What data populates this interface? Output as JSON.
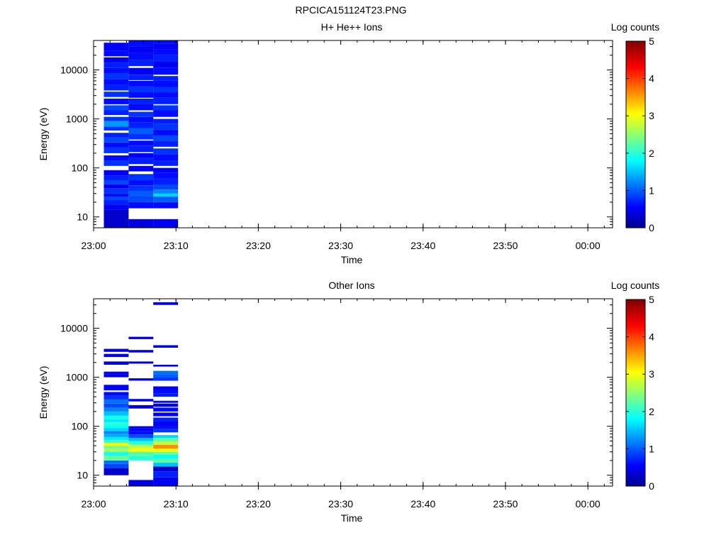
{
  "page_title": "RPCICA151124T23.PNG",
  "chart_data": [
    {
      "type": "heatmap",
      "title": "H+ He++ Ions",
      "xlabel": "Time",
      "ylabel": "Energy (eV)",
      "x_ticks": [
        "23:00",
        "23:10",
        "23:20",
        "23:30",
        "23:40",
        "23:50",
        "00:00"
      ],
      "x_range": [
        "23:00",
        "00:03"
      ],
      "y_scale": "log",
      "y_ticks": [
        10,
        100,
        1000,
        10000
      ],
      "y_range": [
        6,
        40000
      ],
      "colorbar": {
        "label": "Log counts",
        "min": 0,
        "max": 5,
        "ticks": [
          0,
          1,
          2,
          3,
          4,
          5
        ]
      },
      "columns": [
        {
          "t_start": "23:01:15",
          "t_end": "23:04:15",
          "bins": [
            [
              6,
              14,
              0.3
            ],
            [
              14,
              18,
              0.5
            ],
            [
              18,
              22,
              0.7
            ],
            [
              22,
              26,
              0.9
            ],
            [
              26,
              30,
              0.6
            ],
            [
              30,
              38,
              0.8
            ],
            [
              38,
              46,
              0.5
            ],
            [
              46,
              56,
              0.9
            ],
            [
              56,
              70,
              0.7
            ],
            [
              70,
              90,
              0.5
            ],
            [
              110,
              140,
              0.8
            ],
            [
              140,
              180,
              0.6
            ],
            [
              200,
              260,
              0.8
            ],
            [
              260,
              330,
              0.6
            ],
            [
              330,
              420,
              0.9
            ],
            [
              420,
              520,
              0.7
            ],
            [
              580,
              700,
              0.8
            ],
            [
              700,
              900,
              1.3
            ],
            [
              900,
              1100,
              0.8
            ],
            [
              1200,
              1500,
              0.7
            ],
            [
              1500,
              1900,
              0.9
            ],
            [
              2000,
              2600,
              0.6
            ],
            [
              2800,
              3600,
              0.8
            ],
            [
              3800,
              5000,
              0.7
            ],
            [
              5000,
              6500,
              0.6
            ],
            [
              6500,
              8500,
              0.8
            ],
            [
              8500,
              11000,
              0.6
            ],
            [
              11000,
              14000,
              0.7
            ],
            [
              14000,
              18000,
              0.5
            ],
            [
              19000,
              25000,
              0.6
            ],
            [
              25000,
              36000,
              0.5
            ]
          ]
        },
        {
          "t_start": "23:04:15",
          "t_end": "23:07:15",
          "bins": [
            [
              6,
              9,
              0.4
            ],
            [
              15,
              20,
              0.6
            ],
            [
              20,
              26,
              0.9
            ],
            [
              26,
              34,
              1.0
            ],
            [
              34,
              44,
              0.8
            ],
            [
              44,
              56,
              0.6
            ],
            [
              56,
              75,
              0.8
            ],
            [
              85,
              110,
              0.5
            ],
            [
              120,
              160,
              0.7
            ],
            [
              160,
              200,
              0.5
            ],
            [
              210,
              280,
              0.7
            ],
            [
              280,
              360,
              0.6
            ],
            [
              380,
              500,
              0.8
            ],
            [
              500,
              650,
              1.0
            ],
            [
              650,
              850,
              0.7
            ],
            [
              850,
              1100,
              0.6
            ],
            [
              1100,
              1400,
              0.8
            ],
            [
              1500,
              2000,
              0.6
            ],
            [
              2000,
              2600,
              0.7
            ],
            [
              2700,
              3500,
              0.6
            ],
            [
              3500,
              4600,
              0.8
            ],
            [
              4600,
              6000,
              0.6
            ],
            [
              6200,
              8000,
              0.7
            ],
            [
              8000,
              11000,
              0.5
            ],
            [
              12000,
              16000,
              0.7
            ],
            [
              16000,
              22000,
              0.6
            ],
            [
              22000,
              30000,
              0.5
            ],
            [
              30000,
              40000,
              0.6
            ]
          ]
        },
        {
          "t_start": "23:07:15",
          "t_end": "23:10:15",
          "bins": [
            [
              6,
              9,
              0.5
            ],
            [
              15,
              20,
              0.6
            ],
            [
              20,
              26,
              1.0
            ],
            [
              26,
              30,
              1.6
            ],
            [
              30,
              36,
              1.2
            ],
            [
              36,
              46,
              0.9
            ],
            [
              46,
              60,
              0.7
            ],
            [
              60,
              80,
              0.6
            ],
            [
              80,
              100,
              0.5
            ],
            [
              110,
              140,
              0.7
            ],
            [
              140,
              190,
              0.6
            ],
            [
              190,
              250,
              0.8
            ],
            [
              270,
              360,
              0.7
            ],
            [
              360,
              460,
              0.9
            ],
            [
              460,
              600,
              0.6
            ],
            [
              600,
              800,
              0.8
            ],
            [
              800,
              1000,
              0.7
            ],
            [
              1100,
              1500,
              0.6
            ],
            [
              1500,
              1900,
              0.8
            ],
            [
              2000,
              2700,
              0.7
            ],
            [
              2700,
              3500,
              0.6
            ],
            [
              3500,
              4500,
              0.8
            ],
            [
              4500,
              6000,
              0.6
            ],
            [
              6000,
              7500,
              0.7
            ],
            [
              8000,
              11000,
              0.6
            ],
            [
              11000,
              15000,
              0.5
            ],
            [
              15000,
              20000,
              0.7
            ],
            [
              20000,
              26000,
              0.6
            ],
            [
              26000,
              34000,
              0.5
            ],
            [
              34000,
              40000,
              0.6
            ]
          ]
        }
      ]
    },
    {
      "type": "heatmap",
      "title": "Other Ions",
      "xlabel": "Time",
      "ylabel": "Energy (eV)",
      "x_ticks": [
        "23:00",
        "23:10",
        "23:20",
        "23:30",
        "23:40",
        "23:50",
        "00:00"
      ],
      "x_range": [
        "23:00",
        "00:03"
      ],
      "y_scale": "log",
      "y_ticks": [
        10,
        100,
        1000,
        10000
      ],
      "y_range": [
        6,
        40000
      ],
      "colorbar": {
        "label": "Log counts",
        "min": 0,
        "max": 5,
        "ticks": [
          0,
          1,
          2,
          3,
          4,
          5
        ]
      },
      "columns": [
        {
          "t_start": "23:01:15",
          "t_end": "23:04:15",
          "bins": [
            [
              10,
              14,
              0.3
            ],
            [
              14,
              17,
              0.9
            ],
            [
              17,
              20,
              1.1
            ],
            [
              20,
              25,
              2.3
            ],
            [
              25,
              30,
              1.9
            ],
            [
              30,
              35,
              2.6
            ],
            [
              35,
              40,
              2.4
            ],
            [
              40,
              46,
              3.0
            ],
            [
              46,
              52,
              2.1
            ],
            [
              52,
              60,
              1.7
            ],
            [
              60,
              70,
              1.4
            ],
            [
              70,
              80,
              1.2
            ],
            [
              80,
              92,
              1.6
            ],
            [
              92,
              105,
              1.8
            ],
            [
              105,
              120,
              2.0
            ],
            [
              120,
              140,
              1.7
            ],
            [
              140,
              165,
              1.9
            ],
            [
              165,
              200,
              1.5
            ],
            [
              200,
              240,
              1.2
            ],
            [
              240,
              290,
              0.9
            ],
            [
              290,
              350,
              1.1
            ],
            [
              350,
              420,
              0.8
            ],
            [
              420,
              500,
              0.6
            ],
            [
              540,
              700,
              0.5
            ],
            [
              1000,
              1150,
              0.4
            ],
            [
              1150,
              1300,
              0.5
            ],
            [
              1800,
              2100,
              0.4
            ],
            [
              2600,
              3000,
              0.5
            ],
            [
              3300,
              3800,
              0.4
            ]
          ]
        },
        {
          "t_start": "23:04:15",
          "t_end": "23:07:15",
          "bins": [
            [
              6,
              8,
              0.4
            ],
            [
              20,
              25,
              2.0
            ],
            [
              25,
              30,
              2.2
            ],
            [
              30,
              36,
              3.0
            ],
            [
              36,
              42,
              2.7
            ],
            [
              42,
              50,
              2.0
            ],
            [
              50,
              58,
              1.5
            ],
            [
              58,
              68,
              0.9
            ],
            [
              68,
              80,
              0.6
            ],
            [
              80,
              92,
              0.5
            ],
            [
              92,
              100,
              0.4
            ],
            [
              230,
              270,
              0.4
            ],
            [
              320,
              360,
              0.5
            ],
            [
              850,
              950,
              0.4
            ],
            [
              1900,
              2100,
              0.4
            ],
            [
              3200,
              3600,
              0.4
            ],
            [
              6000,
              6700,
              0.4
            ]
          ]
        },
        {
          "t_start": "23:07:15",
          "t_end": "23:10:15",
          "bins": [
            [
              6,
              9,
              0.5
            ],
            [
              9,
              12,
              0.7
            ],
            [
              12,
              15,
              0.3
            ],
            [
              15,
              18,
              1.5
            ],
            [
              18,
              22,
              2.2
            ],
            [
              22,
              26,
              1.8
            ],
            [
              26,
              30,
              2.3
            ],
            [
              30,
              35,
              3.0
            ],
            [
              35,
              42,
              3.6
            ],
            [
              42,
              50,
              2.7
            ],
            [
              50,
              58,
              2.2
            ],
            [
              58,
              66,
              1.6
            ],
            [
              75,
              88,
              0.8
            ],
            [
              88,
              100,
              0.6
            ],
            [
              100,
              125,
              0.5
            ],
            [
              125,
              150,
              0.7
            ],
            [
              160,
              190,
              0.5
            ],
            [
              200,
              240,
              0.6
            ],
            [
              250,
              290,
              0.5
            ],
            [
              300,
              330,
              0.6
            ],
            [
              400,
              470,
              0.7
            ],
            [
              470,
              550,
              0.6
            ],
            [
              550,
              650,
              0.5
            ],
            [
              850,
              1000,
              0.8
            ],
            [
              1000,
              1150,
              1.0
            ],
            [
              1150,
              1350,
              1.1
            ],
            [
              1650,
              1800,
              0.5
            ],
            [
              4000,
              4500,
              0.4
            ],
            [
              30000,
              34000,
              0.4
            ]
          ]
        }
      ]
    }
  ]
}
